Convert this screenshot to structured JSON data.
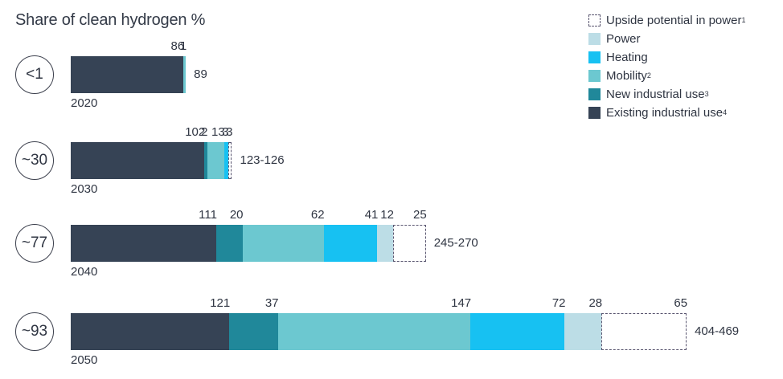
{
  "title": "Share of clean hydrogen %",
  "colors": {
    "upside": "#ffffff",
    "power": "#bcdde6",
    "heating": "#17c1f2",
    "mobility": "#6cc8d0",
    "new_industrial": "#20889a",
    "existing_industrial": "#364355"
  },
  "legend": [
    {
      "key": "upside",
      "label": "Upside potential in power",
      "sup": "1"
    },
    {
      "key": "power",
      "label": "Power",
      "sup": ""
    },
    {
      "key": "heating",
      "label": "Heating",
      "sup": ""
    },
    {
      "key": "mobility",
      "label": "Mobility",
      "sup": "2"
    },
    {
      "key": "new_industrial",
      "label": "New industrial use",
      "sup": "3"
    },
    {
      "key": "existing_industrial",
      "label": "Existing industrial use",
      "sup": "4"
    }
  ],
  "rows": [
    {
      "year": "2020",
      "share": "<1",
      "total": "89",
      "segments": [
        {
          "key": "existing_industrial",
          "value": 86,
          "label": "86"
        },
        {
          "key": "mobility",
          "value": 1,
          "label": "1"
        }
      ]
    },
    {
      "year": "2030",
      "share": "~30",
      "total": "123-126",
      "segments": [
        {
          "key": "existing_industrial",
          "value": 102,
          "label": "102"
        },
        {
          "key": "new_industrial",
          "value": 2,
          "label": "2"
        },
        {
          "key": "mobility",
          "value": 13,
          "label": "13"
        },
        {
          "key": "heating",
          "value": 3,
          "label": "3"
        },
        {
          "key": "upside",
          "value": 3,
          "label": "3"
        }
      ]
    },
    {
      "year": "2040",
      "share": "~77",
      "total": "245-270",
      "segments": [
        {
          "key": "existing_industrial",
          "value": 111,
          "label": "111"
        },
        {
          "key": "new_industrial",
          "value": 20,
          "label": "20"
        },
        {
          "key": "mobility",
          "value": 62,
          "label": "62"
        },
        {
          "key": "heating",
          "value": 41,
          "label": "41"
        },
        {
          "key": "power",
          "value": 12,
          "label": "12"
        },
        {
          "key": "upside",
          "value": 25,
          "label": "25"
        }
      ]
    },
    {
      "year": "2050",
      "share": "~93",
      "total": "404-469",
      "segments": [
        {
          "key": "existing_industrial",
          "value": 121,
          "label": "121"
        },
        {
          "key": "new_industrial",
          "value": 37,
          "label": "37"
        },
        {
          "key": "mobility",
          "value": 147,
          "label": "147"
        },
        {
          "key": "heating",
          "value": 72,
          "label": "72"
        },
        {
          "key": "power",
          "value": 28,
          "label": "28"
        },
        {
          "key": "upside",
          "value": 65,
          "label": "65"
        }
      ]
    }
  ],
  "chart_data": {
    "type": "bar",
    "orientation": "horizontal-stacked",
    "title": "Share of clean hydrogen %",
    "categories": [
      "2020",
      "2030",
      "2040",
      "2050"
    ],
    "share_of_clean_hydrogen": [
      "<1",
      "~30",
      "~77",
      "~93"
    ],
    "totals": [
      "89",
      "123-126",
      "245-270",
      "404-469"
    ],
    "series": [
      {
        "name": "Existing industrial use",
        "values": [
          86,
          102,
          111,
          121
        ]
      },
      {
        "name": "New industrial use",
        "values": [
          0,
          2,
          20,
          37
        ]
      },
      {
        "name": "Mobility",
        "values": [
          1,
          13,
          62,
          147
        ]
      },
      {
        "name": "Heating",
        "values": [
          0,
          3,
          41,
          72
        ]
      },
      {
        "name": "Power",
        "values": [
          0,
          0,
          12,
          28
        ]
      },
      {
        "name": "Upside potential in power",
        "values": [
          0,
          3,
          25,
          65
        ]
      }
    ],
    "legend_position": "top-right",
    "grid": false,
    "xlabel": "",
    "ylabel": ""
  }
}
